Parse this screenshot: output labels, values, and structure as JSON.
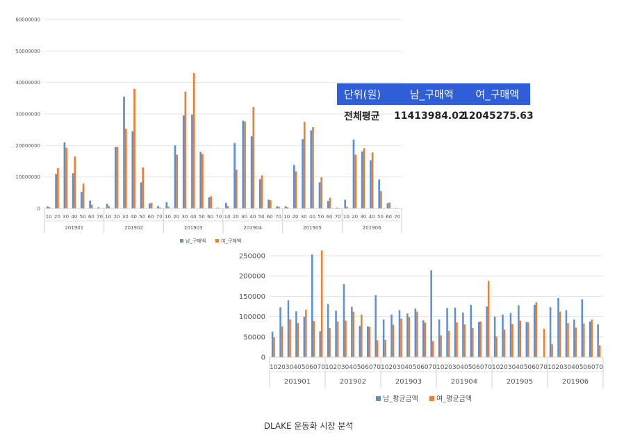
{
  "summary_table": {
    "header": [
      "단위(원)",
      "남_구매액",
      "여_구매액"
    ],
    "row": [
      "전체평균",
      "11413984.02",
      "12045275.63"
    ],
    "header_bg": "#2e5fd9"
  },
  "caption": "DLAKE 운동화 시장 분석",
  "colors": {
    "male": "#5b8fd6",
    "female": "#ed7d31",
    "grid": "#e3e3e3"
  },
  "chart_data": [
    {
      "type": "bar",
      "groups": [
        "201901",
        "201902",
        "201903",
        "201904",
        "201905",
        "201906"
      ],
      "categories": [
        "10",
        "20",
        "30",
        "40",
        "50",
        "60",
        "70"
      ],
      "yticks": [
        "0",
        "10000000",
        "20000000",
        "30000000",
        "40000000",
        "50000000",
        "60000000"
      ],
      "ylim": [
        0,
        60000000
      ],
      "legend_position": "bottom",
      "series": [
        {
          "name": "남_구매액",
          "values": [
            [
              700000,
              11000000,
              21000000,
              11200000,
              5300000,
              2500000,
              400000
            ],
            [
              1500000,
              19500000,
              35500000,
              24500000,
              8300000,
              1600000,
              800000
            ],
            [
              2000000,
              20000000,
              29500000,
              29800000,
              18000000,
              3500000,
              300000
            ],
            [
              1800000,
              20800000,
              27900000,
              22900000,
              9300000,
              2800000,
              700000
            ],
            [
              700000,
              13800000,
              22000000,
              24800000,
              8300000,
              2400000,
              300000
            ],
            [
              2800000,
              21900000,
              18100000,
              15300000,
              9200000,
              1700000,
              200000
            ]
          ]
        },
        {
          "name": "여_구매액",
          "values": [
            [
              400000,
              12800000,
              19300000,
              16500000,
              7900000,
              1200000,
              100000
            ],
            [
              800000,
              19600000,
              25300000,
              38000000,
              13000000,
              1800000,
              300000
            ],
            [
              600000,
              17100000,
              37100000,
              43000000,
              17300000,
              3900000,
              100000
            ],
            [
              800000,
              12300000,
              27600000,
              32200000,
              10500000,
              2600000,
              500000
            ],
            [
              400000,
              11800000,
              27500000,
              25800000,
              9900000,
              3400000,
              200000
            ],
            [
              500000,
              17100000,
              19100000,
              17800000,
              5500000,
              1900000,
              100000
            ]
          ]
        }
      ]
    },
    {
      "type": "bar",
      "groups": [
        "201901",
        "201902",
        "201903",
        "201904",
        "201905",
        "201906"
      ],
      "categories": [
        "10",
        "20",
        "30",
        "40",
        "50",
        "60",
        "70"
      ],
      "yticks": [
        "0",
        "50000",
        "100000",
        "150000",
        "200000",
        "250000"
      ],
      "ylim": [
        0,
        250000
      ],
      "legend_position": "bottom",
      "series": [
        {
          "name": "남_평균금액",
          "values": [
            [
              63000,
              123000,
              140000,
              113000,
              100000,
              253000,
              64000
            ],
            [
              131000,
              115000,
              180000,
              124000,
              77000,
              76000,
              153000
            ],
            [
              93000,
              105000,
              116000,
              108000,
              120000,
              91000,
              214000
            ],
            [
              93000,
              121000,
              122000,
              110000,
              129000,
              87000,
              125000
            ],
            [
              100000,
              105000,
              109000,
              128000,
              87000,
              129000,
              0
            ],
            [
              123000,
              146000,
              116000,
              93000,
              143000,
              88000,
              81000
            ]
          ]
        },
        {
          "name": "여_평균금액",
          "values": [
            [
              49000,
              76000,
              93000,
              84000,
              117000,
              89000,
              263000
            ],
            [
              72000,
              88000,
              90000,
              112000,
              105000,
              75000,
              42000
            ],
            [
              43000,
              80000,
              95000,
              99000,
              112000,
              85000,
              40000
            ],
            [
              54000,
              65000,
              86000,
              81000,
              72000,
              88000,
              188000
            ],
            [
              51000,
              68000,
              82000,
              90000,
              86000,
              135000,
              70000
            ],
            [
              32000,
              112000,
              84000,
              73000,
              83000,
              93000,
              29000
            ]
          ]
        }
      ]
    }
  ]
}
